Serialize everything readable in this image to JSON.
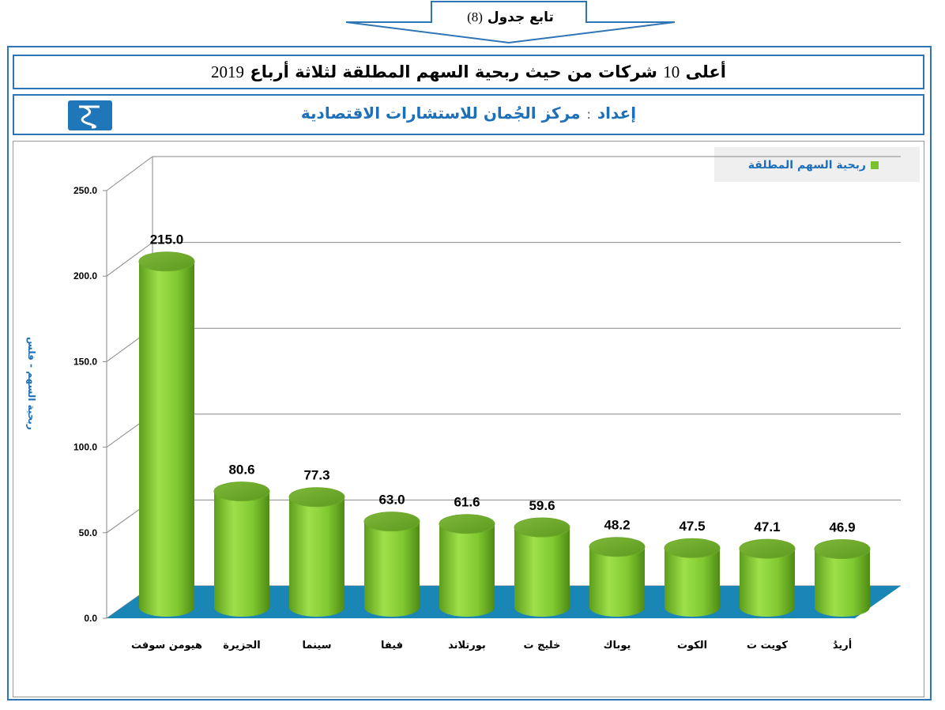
{
  "header": {
    "continuation_label": "تابع جدول",
    "table_number": "(8)"
  },
  "title": {
    "prefix": "أعلى",
    "count": "10",
    "main": "شركات من حيث ربحية السهم المطلقة لثلاثة أرباع",
    "year": "2019"
  },
  "prepared_by": {
    "label": "إعداد",
    "separator": ":",
    "org": "مركز الجُمان للاستشارات الاقتصادية"
  },
  "colors": {
    "frame": "#2e75b6",
    "bar": "#7ac22c",
    "floor": "#1a86b5",
    "accent_text": "#1c6fb8"
  },
  "chart_data": {
    "type": "bar",
    "title": "",
    "xlabel": "",
    "ylabel": "ربحية السهم - فلس",
    "ylim": [
      0,
      250
    ],
    "yticks": [
      "0.0",
      "50.0",
      "100.0",
      "150.0",
      "200.0",
      "250.0"
    ],
    "grid": true,
    "legend_position": "top-right",
    "categories": [
      "هيومن سوفت",
      "الجزيرة",
      "سينما",
      "فيفا",
      "بورتلاند",
      "خليج ت",
      "يوباك",
      "الكوت",
      "كويت ت",
      "أريدُ"
    ],
    "series": [
      {
        "name": "ربحية السهم المطلقة",
        "values": [
          215.0,
          80.6,
          77.3,
          63.0,
          61.6,
          59.6,
          48.2,
          47.5,
          47.1,
          46.9
        ],
        "labels": [
          "215.0",
          "80.6",
          "77.3",
          "63.0",
          "61.6",
          "59.6",
          "48.2",
          "47.5",
          "47.1",
          "46.9"
        ]
      }
    ]
  }
}
